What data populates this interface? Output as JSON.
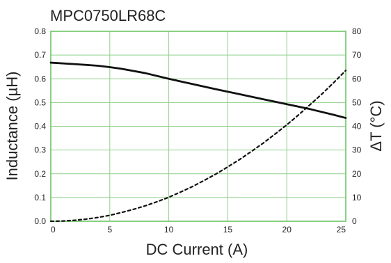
{
  "chart_data": {
    "type": "line",
    "title": "MPC0750LR68C",
    "xlabel": "DC Current (A)",
    "ylabel_left": "Inductance (µH)",
    "ylabel_right": "ΔT (°C)",
    "xlim": [
      0,
      25
    ],
    "ylim_left": [
      0.0,
      0.8
    ],
    "ylim_right": [
      0,
      80
    ],
    "x_ticks": [
      0,
      5,
      10,
      15,
      20,
      25
    ],
    "y_left_ticks": [
      "0.0",
      "0.1",
      "0.2",
      "0.3",
      "0.4",
      "0.5",
      "0.6",
      "0.7",
      "0.8"
    ],
    "y_right_ticks": [
      "0",
      "10",
      "20",
      "30",
      "40",
      "50",
      "60",
      "70",
      "80"
    ],
    "grid": true,
    "colors": {
      "grid": "#90d08a",
      "axis": "#6cc466",
      "line": "#111111",
      "text": "#222222"
    },
    "series": [
      {
        "axis": "left",
        "style": "solid",
        "x": [
          0,
          2,
          4,
          5,
          6,
          8,
          10,
          12,
          14,
          16,
          18,
          20,
          22,
          24,
          25
        ],
        "y": [
          0.668,
          0.662,
          0.655,
          0.649,
          0.642,
          0.624,
          0.6,
          0.578,
          0.556,
          0.535,
          0.514,
          0.493,
          0.472,
          0.448,
          0.435
        ]
      },
      {
        "axis": "right",
        "style": "dashed",
        "x": [
          0,
          1,
          2,
          3,
          4,
          5,
          6,
          7,
          8,
          9,
          10,
          11,
          12,
          13,
          14,
          15,
          16,
          17,
          18,
          19,
          20,
          21,
          22,
          23,
          24,
          25
        ],
        "y": [
          0,
          0.1,
          0.4,
          0.9,
          1.6,
          2.5,
          3.7,
          5.0,
          6.5,
          8.2,
          10.1,
          12.3,
          14.6,
          17.2,
          19.9,
          22.9,
          26.0,
          29.4,
          32.9,
          36.7,
          40.6,
          44.8,
          49.2,
          53.7,
          58.5,
          63.5
        ]
      }
    ]
  }
}
